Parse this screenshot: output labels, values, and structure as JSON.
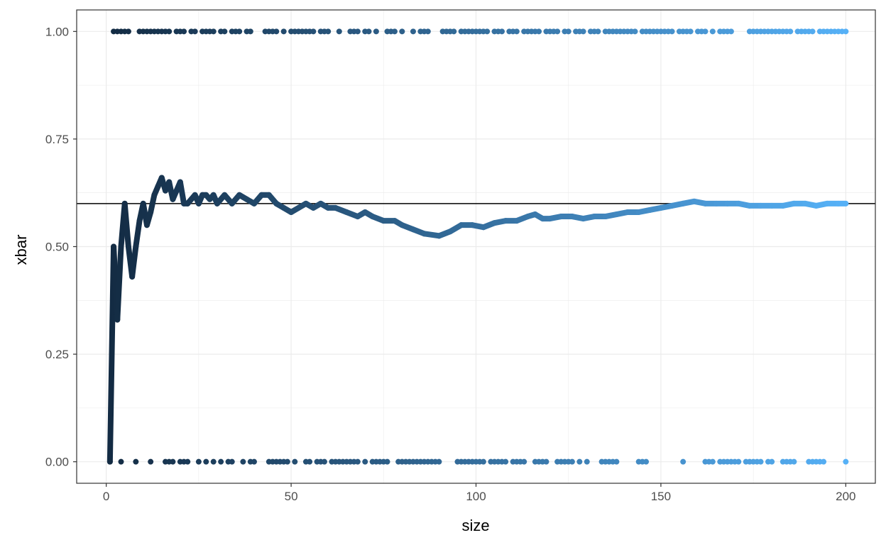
{
  "chart_data": {
    "type": "scatter",
    "title": "",
    "xlabel": "size",
    "ylabel": "xbar",
    "xlim": [
      -8,
      208
    ],
    "ylim": [
      -0.05,
      1.05
    ],
    "grid": true,
    "x_ticks": [
      0,
      50,
      100,
      150,
      200
    ],
    "x_tick_labels": [
      "0",
      "50",
      "100",
      "150",
      "200"
    ],
    "y_ticks": [
      0,
      0.25,
      0.5,
      0.75,
      1
    ],
    "y_tick_labels": [
      "0.00",
      "0.25",
      "0.50",
      "0.75",
      "1.00"
    ],
    "reference_line": {
      "y": 0.6,
      "color": "#000000"
    },
    "color_gradient": [
      "#132b43",
      "#56b1f7"
    ],
    "series": [
      {
        "type": "scatter",
        "x_one": [
          2,
          3,
          4,
          5,
          6,
          9,
          10,
          11,
          12,
          13,
          14,
          15,
          16,
          17,
          19,
          20,
          21,
          23,
          24,
          26,
          27,
          28,
          29,
          31,
          32,
          34,
          35,
          36,
          38,
          39,
          43,
          44,
          45,
          46,
          48,
          50,
          51,
          52,
          53,
          54,
          55,
          56,
          58,
          59,
          60,
          63,
          66,
          67,
          68,
          70,
          71,
          73,
          76,
          77,
          78,
          80,
          83,
          85,
          86,
          87,
          91,
          92,
          93,
          94,
          96,
          97,
          98,
          99,
          100,
          101,
          102,
          103,
          105,
          106,
          107,
          109,
          110,
          111,
          113,
          114,
          115,
          116,
          117,
          119,
          120,
          121,
          122,
          124,
          125,
          127,
          128,
          129,
          131,
          132,
          133,
          135,
          136,
          137,
          138,
          139,
          140,
          141,
          142,
          143,
          145,
          146,
          147,
          148,
          149,
          150,
          151,
          152,
          153,
          155,
          156,
          157,
          158,
          160,
          161,
          162,
          164,
          166,
          167,
          168,
          169,
          174,
          175,
          176,
          177,
          178,
          179,
          180,
          181,
          182,
          183,
          184,
          185,
          187,
          188,
          189,
          190,
          191,
          193,
          194,
          195,
          196,
          197,
          198,
          199,
          200
        ],
        "x_zero": [
          1,
          4,
          8,
          12,
          16,
          17,
          18,
          20,
          21,
          22,
          25,
          27,
          29,
          31,
          33,
          34,
          37,
          39,
          40,
          44,
          45,
          46,
          47,
          48,
          49,
          51,
          54,
          55,
          57,
          58,
          59,
          61,
          62,
          63,
          64,
          65,
          66,
          67,
          68,
          70,
          72,
          73,
          74,
          75,
          76,
          79,
          80,
          81,
          82,
          83,
          84,
          85,
          86,
          87,
          88,
          89,
          90,
          95,
          96,
          97,
          98,
          99,
          100,
          101,
          102,
          104,
          105,
          106,
          107,
          108,
          110,
          111,
          112,
          113,
          116,
          117,
          118,
          119,
          122,
          123,
          124,
          125,
          126,
          128,
          130,
          134,
          135,
          136,
          137,
          138,
          144,
          145,
          146,
          156,
          162,
          163,
          164,
          166,
          167,
          168,
          169,
          170,
          171,
          173,
          174,
          175,
          176,
          177,
          179,
          180,
          183,
          184,
          185,
          186,
          190,
          191,
          192,
          193,
          194,
          200
        ]
      },
      {
        "type": "line",
        "name": "",
        "points": [
          [
            1,
            0.0
          ],
          [
            2,
            0.5
          ],
          [
            3,
            0.33
          ],
          [
            4,
            0.5
          ],
          [
            5,
            0.6
          ],
          [
            6,
            0.5
          ],
          [
            7,
            0.43
          ],
          [
            8,
            0.5
          ],
          [
            9,
            0.56
          ],
          [
            10,
            0.6
          ],
          [
            11,
            0.55
          ],
          [
            12,
            0.58
          ],
          [
            13,
            0.62
          ],
          [
            14,
            0.64
          ],
          [
            15,
            0.66
          ],
          [
            16,
            0.63
          ],
          [
            17,
            0.65
          ],
          [
            18,
            0.61
          ],
          [
            19,
            0.63
          ],
          [
            20,
            0.65
          ],
          [
            21,
            0.6
          ],
          [
            22,
            0.6
          ],
          [
            23,
            0.61
          ],
          [
            24,
            0.62
          ],
          [
            25,
            0.6
          ],
          [
            26,
            0.62
          ],
          [
            27,
            0.62
          ],
          [
            28,
            0.61
          ],
          [
            29,
            0.62
          ],
          [
            30,
            0.6
          ],
          [
            32,
            0.62
          ],
          [
            34,
            0.6
          ],
          [
            36,
            0.62
          ],
          [
            38,
            0.61
          ],
          [
            40,
            0.6
          ],
          [
            42,
            0.62
          ],
          [
            44,
            0.62
          ],
          [
            46,
            0.6
          ],
          [
            48,
            0.59
          ],
          [
            50,
            0.58
          ],
          [
            52,
            0.59
          ],
          [
            54,
            0.6
          ],
          [
            56,
            0.59
          ],
          [
            58,
            0.6
          ],
          [
            60,
            0.59
          ],
          [
            62,
            0.59
          ],
          [
            65,
            0.58
          ],
          [
            68,
            0.57
          ],
          [
            70,
            0.58
          ],
          [
            72,
            0.57
          ],
          [
            75,
            0.56
          ],
          [
            78,
            0.56
          ],
          [
            80,
            0.55
          ],
          [
            83,
            0.54
          ],
          [
            86,
            0.53
          ],
          [
            90,
            0.525
          ],
          [
            93,
            0.535
          ],
          [
            96,
            0.55
          ],
          [
            99,
            0.55
          ],
          [
            102,
            0.545
          ],
          [
            105,
            0.555
          ],
          [
            108,
            0.56
          ],
          [
            111,
            0.56
          ],
          [
            114,
            0.57
          ],
          [
            116,
            0.575
          ],
          [
            118,
            0.565
          ],
          [
            120,
            0.565
          ],
          [
            123,
            0.57
          ],
          [
            126,
            0.57
          ],
          [
            129,
            0.565
          ],
          [
            132,
            0.57
          ],
          [
            135,
            0.57
          ],
          [
            138,
            0.575
          ],
          [
            141,
            0.58
          ],
          [
            144,
            0.58
          ],
          [
            147,
            0.585
          ],
          [
            150,
            0.59
          ],
          [
            153,
            0.595
          ],
          [
            156,
            0.6
          ],
          [
            159,
            0.605
          ],
          [
            162,
            0.6
          ],
          [
            165,
            0.6
          ],
          [
            168,
            0.6
          ],
          [
            171,
            0.6
          ],
          [
            174,
            0.595
          ],
          [
            177,
            0.595
          ],
          [
            180,
            0.595
          ],
          [
            183,
            0.595
          ],
          [
            186,
            0.6
          ],
          [
            189,
            0.6
          ],
          [
            192,
            0.595
          ],
          [
            195,
            0.6
          ],
          [
            198,
            0.6
          ],
          [
            200,
            0.6
          ]
        ]
      }
    ]
  }
}
